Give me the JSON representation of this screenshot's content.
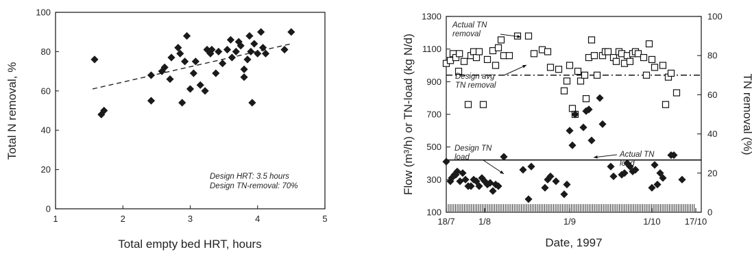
{
  "chart_data": [
    {
      "type": "scatter",
      "xlabel": "Total empty bed HRT, hours",
      "ylabel": "Total N removal, %",
      "xlim": [
        1,
        5
      ],
      "ylim": [
        0,
        100
      ],
      "xticks": [
        "1",
        "2",
        "3",
        "4",
        "5"
      ],
      "yticks": [
        "0",
        "20",
        "40",
        "60",
        "80",
        "100"
      ],
      "annotations": [
        "Design HRT: 3.5 hours",
        "Design TN-removal: 70%"
      ],
      "series": [
        {
          "marker": "filled-diamond",
          "color": "#1a1a1a",
          "points": [
            [
              1.58,
              76
            ],
            [
              1.68,
              48
            ],
            [
              1.72,
              50
            ],
            [
              2.42,
              68
            ],
            [
              2.42,
              55
            ],
            [
              2.58,
              70
            ],
            [
              2.62,
              72
            ],
            [
              2.7,
              66
            ],
            [
              2.72,
              77
            ],
            [
              2.82,
              82
            ],
            [
              2.85,
              79
            ],
            [
              2.88,
              54
            ],
            [
              2.92,
              75
            ],
            [
              2.95,
              88
            ],
            [
              3.0,
              61
            ],
            [
              3.05,
              69
            ],
            [
              3.08,
              75
            ],
            [
              3.15,
              63
            ],
            [
              3.22,
              60
            ],
            [
              3.25,
              81
            ],
            [
              3.3,
              79
            ],
            [
              3.32,
              81
            ],
            [
              3.38,
              69
            ],
            [
              3.42,
              80
            ],
            [
              3.48,
              74
            ],
            [
              3.55,
              81
            ],
            [
              3.6,
              86
            ],
            [
              3.62,
              77
            ],
            [
              3.68,
              80
            ],
            [
              3.72,
              85
            ],
            [
              3.75,
              83
            ],
            [
              3.8,
              67
            ],
            [
              3.8,
              71
            ],
            [
              3.85,
              76
            ],
            [
              3.88,
              88
            ],
            [
              3.9,
              80
            ],
            [
              3.92,
              54
            ],
            [
              3.95,
              84
            ],
            [
              4.0,
              79
            ],
            [
              4.05,
              90
            ],
            [
              4.08,
              82
            ],
            [
              4.12,
              79
            ],
            [
              4.4,
              81
            ],
            [
              4.5,
              90
            ]
          ]
        }
      ],
      "trendline": {
        "style": "dashed",
        "x": [
          1.55,
          4.5
        ],
        "y": [
          61,
          84
        ]
      }
    },
    {
      "type": "scatter",
      "xlabel": "Date, 1997",
      "ylabel": "Flow (m³/h) or TN-load (kg N/d)",
      "ylabel_right": "TN removal (%)",
      "xlim": [
        0,
        93
      ],
      "ylim": [
        100,
        1300
      ],
      "ylim_right": [
        0,
        100
      ],
      "xticks": [
        {
          "label": "18/7",
          "x": 0
        },
        {
          "label": "1/8",
          "x": 14
        },
        {
          "label": "1/9",
          "x": 45
        },
        {
          "label": "1/10",
          "x": 75
        },
        {
          "label": "17/10",
          "x": 91
        }
      ],
      "yticks": [
        "100",
        "300",
        "500",
        "700",
        "900",
        "1100",
        "1300"
      ],
      "yticks_right": [
        "0",
        "20",
        "40",
        "60",
        "80",
        "100"
      ],
      "annotations": [
        {
          "text_lines": [
            "Actual TN",
            "removal"
          ],
          "target": "open-squares"
        },
        {
          "text_lines": [
            "Design avg",
            "TN removal"
          ],
          "target": "dash-dot-line"
        },
        {
          "text_lines": [
            "Design TN",
            "load"
          ],
          "target": "solid-line"
        },
        {
          "text_lines": [
            "Actual TN",
            "load"
          ],
          "target": "filled-diamonds"
        }
      ],
      "series": [
        {
          "name": "Actual TN removal",
          "marker": "open-square",
          "axis": "right",
          "points": [
            [
              0,
              76
            ],
            [
              1.5,
              77.5
            ],
            [
              2.5,
              81
            ],
            [
              3.5,
              79
            ],
            [
              4.5,
              72
            ],
            [
              4.8,
              81
            ],
            [
              6.5,
              77
            ],
            [
              8,
              55
            ],
            [
              9,
              80
            ],
            [
              10,
              82
            ],
            [
              11,
              79
            ],
            [
              12,
              82
            ],
            [
              13.5,
              55
            ],
            [
              15,
              78
            ],
            [
              17,
              82.5
            ],
            [
              18,
              75
            ],
            [
              19,
              84
            ],
            [
              20,
              88
            ],
            [
              21,
              80
            ],
            [
              23,
              80
            ],
            [
              26,
              90
            ],
            [
              30,
              90
            ],
            [
              32,
              81
            ],
            [
              35,
              83
            ],
            [
              37,
              82
            ],
            [
              38,
              74
            ],
            [
              41,
              73
            ],
            [
              43,
              62
            ],
            [
              44,
              67
            ],
            [
              45,
              75
            ],
            [
              46,
              53
            ],
            [
              47,
              50
            ],
            [
              48,
              72
            ],
            [
              49,
              67
            ],
            [
              50.5,
              70
            ],
            [
              51,
              58
            ],
            [
              52,
              79
            ],
            [
              53,
              88
            ],
            [
              54,
              80
            ],
            [
              55,
              70
            ],
            [
              57,
              80
            ],
            [
              58,
              82
            ],
            [
              59,
              82
            ],
            [
              61,
              79
            ],
            [
              62,
              77
            ],
            [
              63,
              82
            ],
            [
              64,
              81
            ],
            [
              65,
              76
            ],
            [
              66,
              80
            ],
            [
              67,
              77
            ],
            [
              68,
              81
            ],
            [
              69,
              82
            ],
            [
              70,
              81
            ],
            [
              72,
              79
            ],
            [
              73,
              70
            ],
            [
              74,
              86
            ],
            [
              75,
              78
            ],
            [
              76,
              74
            ],
            [
              79,
              75
            ],
            [
              80,
              55
            ],
            [
              81,
              69
            ],
            [
              82,
              71
            ],
            [
              84,
              61
            ]
          ]
        },
        {
          "name": "Actual TN load",
          "marker": "filled-diamond",
          "axis": "left",
          "points": [
            [
              0,
              410
            ],
            [
              1.5,
              290
            ],
            [
              2,
              310
            ],
            [
              3,
              330
            ],
            [
              3.5,
              330
            ],
            [
              4,
              350
            ],
            [
              5,
              290
            ],
            [
              6,
              340
            ],
            [
              7,
              300
            ],
            [
              8,
              260
            ],
            [
              9,
              260
            ],
            [
              10,
              300
            ],
            [
              11,
              290
            ],
            [
              12,
              260
            ],
            [
              13,
              310
            ],
            [
              14,
              290
            ],
            [
              15,
              270
            ],
            [
              16,
              280
            ],
            [
              17,
              230
            ],
            [
              18,
              270
            ],
            [
              19,
              260
            ],
            [
              21,
              440
            ],
            [
              28,
              360
            ],
            [
              30,
              180
            ],
            [
              31,
              380
            ],
            [
              36,
              250
            ],
            [
              37,
              300
            ],
            [
              38,
              320
            ],
            [
              40,
              290
            ],
            [
              43,
              210
            ],
            [
              44,
              270
            ],
            [
              45,
              600
            ],
            [
              46,
              510
            ],
            [
              47,
              700
            ],
            [
              50,
              620
            ],
            [
              51,
              720
            ],
            [
              52,
              730
            ],
            [
              53,
              540
            ],
            [
              56,
              800
            ],
            [
              57,
              640
            ],
            [
              60,
              380
            ],
            [
              61,
              320
            ],
            [
              64,
              330
            ],
            [
              65,
              340
            ],
            [
              66,
              400
            ],
            [
              67,
              380
            ],
            [
              68,
              350
            ],
            [
              69,
              360
            ],
            [
              75,
              250
            ],
            [
              76,
              390
            ],
            [
              77,
              270
            ],
            [
              78,
              340
            ],
            [
              79,
              310
            ],
            [
              82,
              450
            ],
            [
              83,
              450
            ],
            [
              86,
              300
            ]
          ]
        }
      ],
      "reference_lines": [
        {
          "name": "Design avg TN removal",
          "axis": "right",
          "value": 70,
          "style": "dash-dot"
        },
        {
          "name": "Design TN load",
          "axis": "left",
          "value": 420,
          "style": "solid"
        }
      ],
      "flow_strip": {
        "value": 150,
        "style": "dense-vertical-ticks"
      }
    }
  ]
}
